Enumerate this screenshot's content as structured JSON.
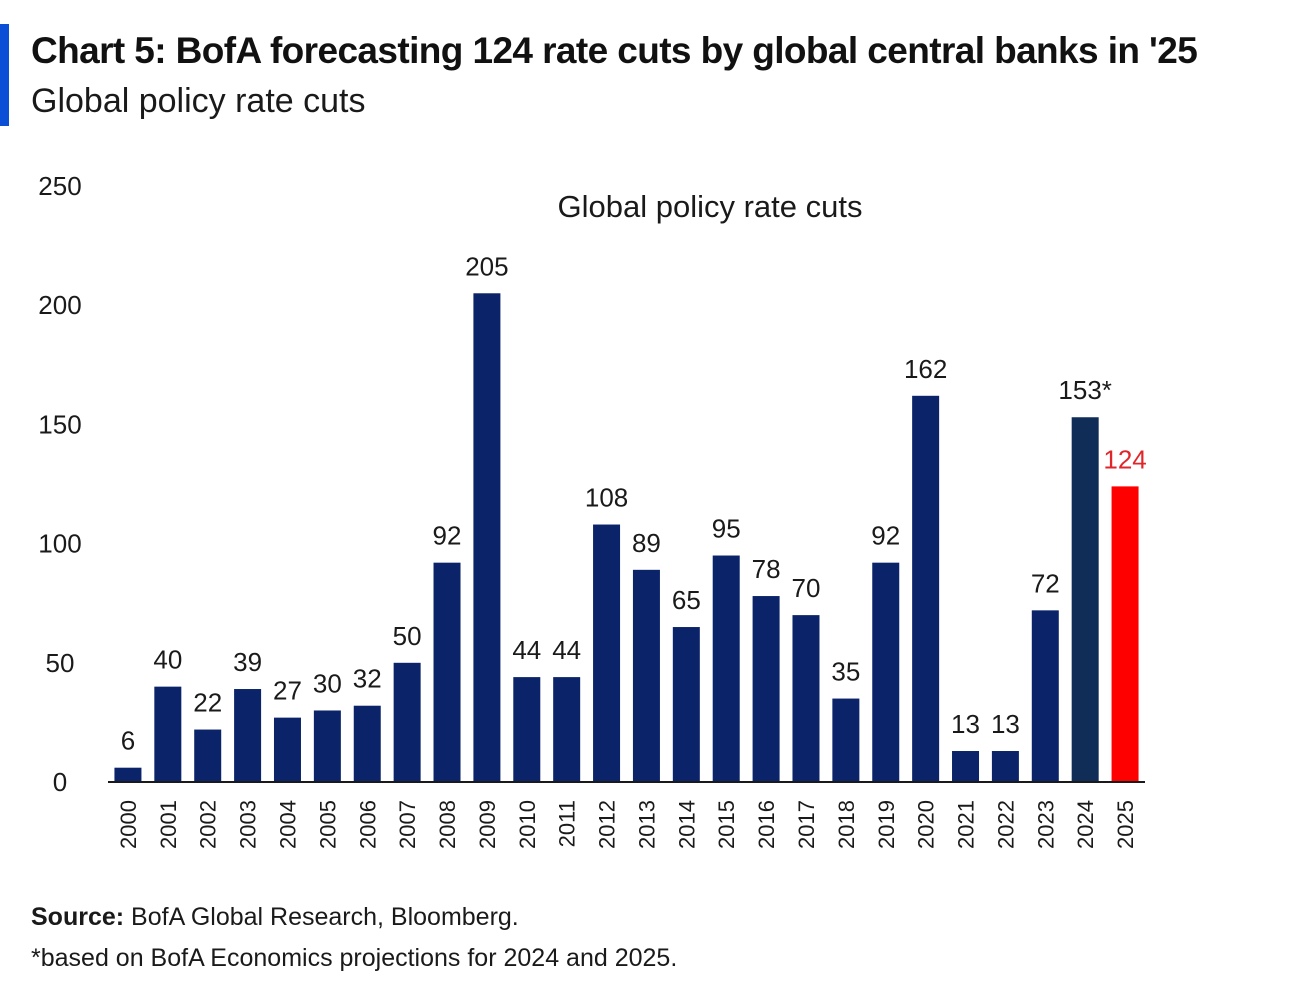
{
  "header": {
    "title": "Chart 5: BofA forecasting 124 rate cuts by global central banks in '25",
    "subtitle": "Global policy rate cuts"
  },
  "footer": {
    "source_label": "Source:",
    "source_text": "BofA Global Research, Bloomberg.",
    "note": "*based on BofA Economics projections for 2024 and 2025."
  },
  "colors": {
    "accent": "#0b4fd6",
    "bar": "#0b2469",
    "bar_2024": "#0f2d57",
    "bar_2025": "#ff0000",
    "label_2025": "#e0262b"
  },
  "chart_data": {
    "type": "bar",
    "title": "Global policy rate cuts",
    "xlabel": "",
    "ylabel": "",
    "ylim": [
      0,
      250
    ],
    "yticks": [
      0,
      50,
      100,
      150,
      200,
      250
    ],
    "grid": false,
    "legend": false,
    "categories": [
      "2000",
      "2001",
      "2002",
      "2003",
      "2004",
      "2005",
      "2006",
      "2007",
      "2008",
      "2009",
      "2010",
      "2011",
      "2012",
      "2013",
      "2014",
      "2015",
      "2016",
      "2017",
      "2018",
      "2019",
      "2020",
      "2021",
      "2022",
      "2023",
      "2024",
      "2025"
    ],
    "values": [
      6,
      40,
      22,
      39,
      27,
      30,
      32,
      50,
      92,
      205,
      44,
      44,
      108,
      89,
      65,
      95,
      78,
      70,
      35,
      92,
      162,
      13,
      13,
      72,
      153,
      124
    ],
    "data_labels": [
      "6",
      "40",
      "22",
      "39",
      "27",
      "30",
      "32",
      "50",
      "92",
      "205",
      "44",
      "44",
      "108",
      "89",
      "65",
      "95",
      "78",
      "70",
      "35",
      "92",
      "162",
      "13",
      "13",
      "72",
      "153*",
      "124"
    ]
  }
}
